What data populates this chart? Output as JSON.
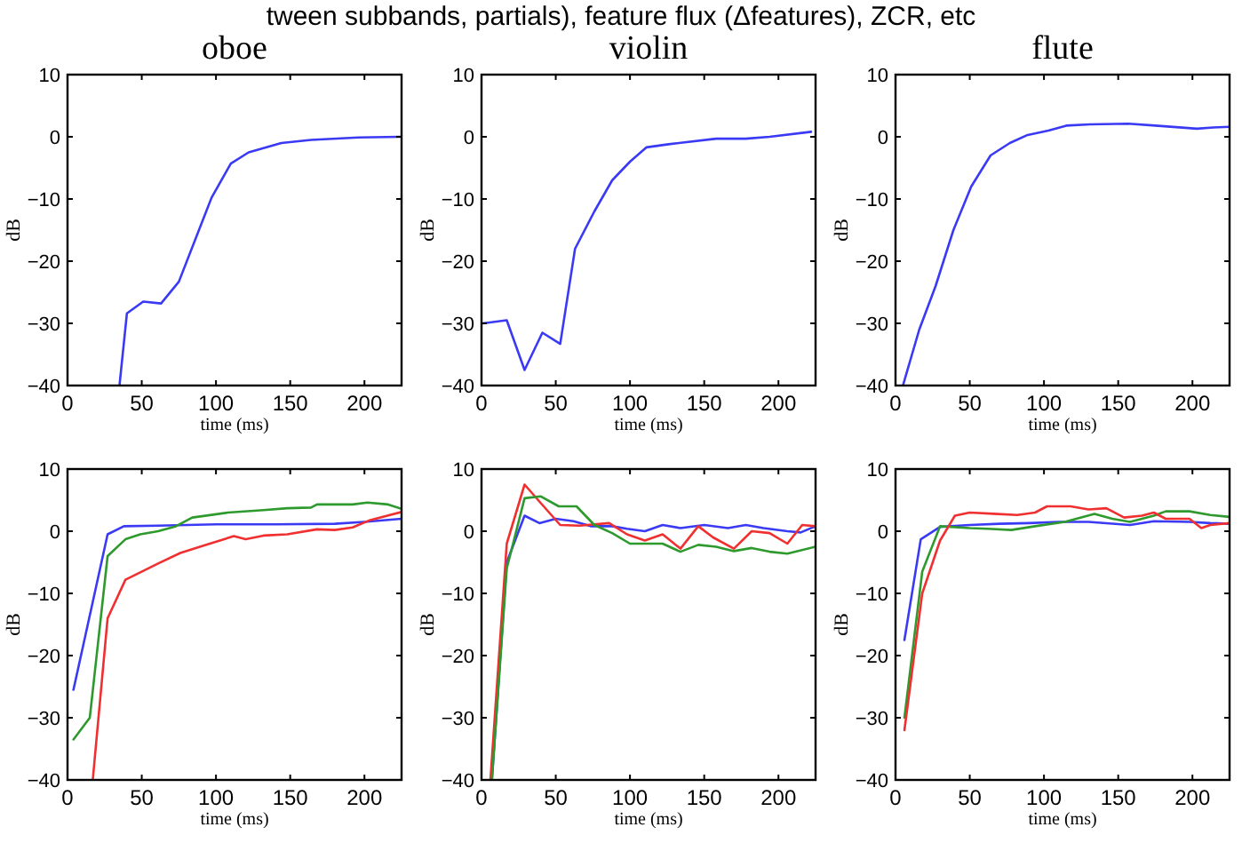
{
  "chart_data": [
    {
      "type": "line",
      "title": "oboe",
      "xlabel": "time (ms)",
      "ylabel": "dB",
      "xlim": [
        0,
        225
      ],
      "ylim": [
        -40,
        10
      ],
      "xticks": [
        0,
        50,
        100,
        150,
        200
      ],
      "yticks": [
        -40,
        -30,
        -20,
        -10,
        0,
        10
      ],
      "annotations": [
        "tween subbands, partials), feature flux (Δfeatures), ZCR, etc"
      ],
      "series": [
        {
          "color": "#3a3af5",
          "x": [
            35,
            40,
            51,
            63,
            75,
            97,
            110,
            122,
            144,
            164,
            196,
            224
          ],
          "values": [
            -40,
            -28.4,
            -26.5,
            -26.8,
            -23.3,
            -9.8,
            -4.3,
            -2.5,
            -1,
            -0.5,
            -0.1,
            0
          ]
        }
      ]
    },
    {
      "type": "line",
      "title": "violin",
      "xlabel": "time (ms)",
      "ylabel": "dB",
      "xlim": [
        0,
        225
      ],
      "ylim": [
        -40,
        10
      ],
      "xticks": [
        0,
        50,
        100,
        150,
        200
      ],
      "yticks": [
        -40,
        -30,
        -20,
        -10,
        0,
        10
      ],
      "series": [
        {
          "color": "#3a3af5",
          "x": [
            1,
            17,
            29,
            41,
            53,
            63,
            76,
            88,
            100,
            111,
            126,
            158,
            178,
            194,
            222
          ],
          "values": [
            -30,
            -29.5,
            -37.5,
            -31.5,
            -33.3,
            -18,
            -12,
            -7,
            -4,
            -1.7,
            -1.2,
            -0.3,
            -0.3,
            0,
            0.8
          ]
        }
      ]
    },
    {
      "type": "line",
      "title": "flute",
      "xlabel": "time (ms)",
      "ylabel": "dB",
      "xlim": [
        0,
        225
      ],
      "ylim": [
        -40,
        10
      ],
      "xticks": [
        0,
        50,
        100,
        150,
        200
      ],
      "yticks": [
        -40,
        -30,
        -20,
        -10,
        0,
        10
      ],
      "series": [
        {
          "color": "#3a3af5",
          "x": [
            5,
            16,
            27,
            39,
            51,
            64,
            77,
            89,
            103,
            115,
            131,
            157,
            175,
            203,
            214,
            225
          ],
          "values": [
            -40,
            -31,
            -24,
            -15,
            -8,
            -3,
            -1,
            0.3,
            1,
            1.8,
            2,
            2.1,
            1.8,
            1.3,
            1.5,
            1.6
          ]
        }
      ]
    },
    {
      "type": "line",
      "xlabel": "time (ms)",
      "ylabel": "dB",
      "xlim": [
        0,
        225
      ],
      "ylim": [
        -40,
        10
      ],
      "xticks": [
        0,
        50,
        100,
        150,
        200
      ],
      "yticks": [
        -40,
        -30,
        -20,
        -10,
        0,
        10
      ],
      "series": [
        {
          "color": "#3a3af5",
          "x": [
            4,
            27,
            38,
            61,
            100,
            140,
            180,
            200,
            225
          ],
          "values": [
            -25.5,
            -0.5,
            0.8,
            0.9,
            1.1,
            1.1,
            1.2,
            1.5,
            2
          ]
        },
        {
          "color": "#2e9a2e",
          "x": [
            4,
            15,
            27,
            39,
            49,
            61,
            73,
            84,
            108,
            132,
            148,
            164,
            168,
            192,
            202,
            216,
            225
          ],
          "values": [
            -33.5,
            -30,
            -4,
            -1.3,
            -0.5,
            0,
            0.8,
            2.2,
            3,
            3.4,
            3.7,
            3.8,
            4.3,
            4.3,
            4.6,
            4.3,
            3.6
          ]
        },
        {
          "color": "#f03030",
          "x": [
            17,
            27,
            39,
            61,
            76,
            92,
            112,
            120,
            132,
            148,
            168,
            180,
            192,
            204,
            225
          ],
          "values": [
            -40,
            -14,
            -7.8,
            -5.2,
            -3.5,
            -2.3,
            -0.8,
            -1.3,
            -0.7,
            -0.5,
            0.3,
            0.2,
            0.6,
            1.8,
            3.1
          ]
        }
      ]
    },
    {
      "type": "line",
      "xlabel": "time (ms)",
      "ylabel": "dB",
      "xlim": [
        0,
        225
      ],
      "ylim": [
        -40,
        10
      ],
      "xticks": [
        0,
        50,
        100,
        150,
        200
      ],
      "yticks": [
        -40,
        -30,
        -20,
        -10,
        0,
        10
      ],
      "series": [
        {
          "color": "#3a3af5",
          "x": [
            7,
            17,
            29,
            39,
            50,
            62,
            74,
            88,
            98,
            110,
            122,
            134,
            150,
            166,
            178,
            190,
            206,
            215,
            225
          ],
          "values": [
            -40,
            -5,
            2.5,
            1.3,
            2,
            1.6,
            0.8,
            0.8,
            0.4,
            0,
            1,
            0.5,
            1,
            0.5,
            1,
            0.5,
            0,
            -0.2,
            0.8
          ]
        },
        {
          "color": "#f03030",
          "x": [
            6,
            17,
            29,
            40,
            53,
            66,
            86,
            98,
            110,
            122,
            134,
            146,
            156,
            170,
            182,
            194,
            206,
            216,
            225
          ],
          "values": [
            -40,
            -2,
            7.5,
            4.5,
            1,
            0.9,
            1.3,
            -0.5,
            -1.5,
            -0.5,
            -2.8,
            0.8,
            -1,
            -2.8,
            0,
            -0.3,
            -2,
            1,
            0.8
          ]
        },
        {
          "color": "#2e9a2e",
          "x": [
            7,
            17,
            29,
            40,
            52,
            64,
            76,
            88,
            100,
            114,
            122,
            134,
            146,
            158,
            170,
            182,
            194,
            206,
            225
          ],
          "values": [
            -40,
            -6,
            5.3,
            5.6,
            4,
            4,
            1,
            -0.3,
            -2,
            -2,
            -2,
            -3.3,
            -2.2,
            -2.5,
            -3.2,
            -2.7,
            -3.3,
            -3.6,
            -2.5
          ]
        }
      ]
    },
    {
      "type": "line",
      "xlabel": "time (ms)",
      "ylabel": "dB",
      "xlim": [
        0,
        225
      ],
      "ylim": [
        -40,
        10
      ],
      "xticks": [
        0,
        50,
        100,
        150,
        200
      ],
      "yticks": [
        -40,
        -30,
        -20,
        -10,
        0,
        10
      ],
      "series": [
        {
          "color": "#3a3af5",
          "x": [
            6,
            17,
            30,
            50,
            70,
            90,
            110,
            130,
            158,
            174,
            198,
            212,
            225
          ],
          "values": [
            -17.5,
            -1.3,
            0.7,
            1,
            1.2,
            1.3,
            1.5,
            1.5,
            1,
            1.6,
            1.5,
            1.3,
            1.2
          ]
        },
        {
          "color": "#2e9a2e",
          "x": [
            6,
            18,
            30,
            50,
            62,
            78,
            94,
            114,
            134,
            146,
            158,
            174,
            182,
            198,
            212,
            225
          ],
          "values": [
            -30,
            -6.5,
            0.8,
            0.5,
            0.4,
            0.2,
            0.8,
            1.5,
            2.8,
            2,
            1.5,
            2.5,
            3.2,
            3.2,
            2.6,
            2.3
          ]
        },
        {
          "color": "#f03030",
          "x": [
            6,
            18,
            30,
            40,
            50,
            66,
            82,
            94,
            102,
            118,
            130,
            142,
            154,
            166,
            174,
            182,
            198,
            206,
            212,
            225
          ],
          "values": [
            -32,
            -10,
            -1.5,
            2.5,
            3,
            2.8,
            2.6,
            3,
            4,
            4,
            3.5,
            3.7,
            2.2,
            2.5,
            3,
            2,
            2,
            0.5,
            1,
            1.3
          ]
        }
      ]
    }
  ]
}
